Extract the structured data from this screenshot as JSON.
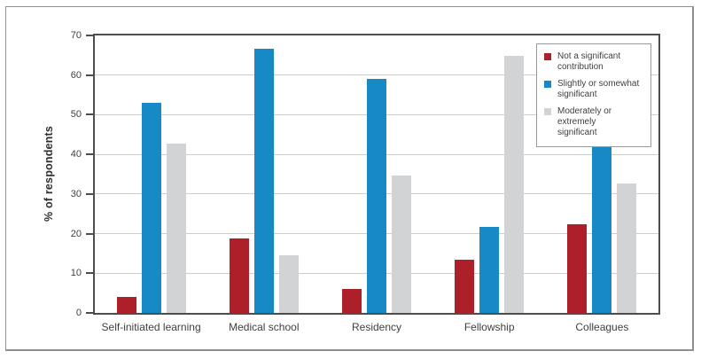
{
  "figure": {
    "background": "#ffffff",
    "border_color": "#8f8f8f"
  },
  "colors": {
    "axis": "#4d4d4d",
    "grid": "#cdcdcd",
    "text": "#3f3f3f",
    "legend_border": "#9a9a9a",
    "not_significant": "#ad1f29",
    "slightly_somewhat": "#1789c5",
    "moderately_extremely": "#d2d3d5"
  },
  "chart_data": {
    "type": "bar",
    "title": "",
    "xlabel": "",
    "ylabel": "% of respondents",
    "ylim": [
      0,
      70
    ],
    "yticks": [
      0,
      10,
      20,
      30,
      40,
      50,
      60,
      70
    ],
    "grid": "horizontal",
    "legend_position": "top-right-inside",
    "categories": [
      "Self-initiated learning",
      "Medical school",
      "Residency",
      "Fellowship",
      "Colleagues"
    ],
    "series": [
      {
        "name": "Not a significant contribution",
        "label_lines": [
          "Not a significant",
          "contribution"
        ],
        "color": "#ad1f29",
        "values": [
          4.1,
          18.8,
          6.1,
          13.5,
          22.3
        ]
      },
      {
        "name": "Slightly or somewhat significant",
        "label_lines": [
          "Slightly or somewhat",
          "significant"
        ],
        "color": "#1789c5",
        "values": [
          53.0,
          66.6,
          59.1,
          21.6,
          45.0
        ]
      },
      {
        "name": "Moderately or extremely significant",
        "label_lines": [
          "Moderately or extremely",
          "significant"
        ],
        "color": "#d2d3d5",
        "values": [
          42.8,
          14.6,
          34.6,
          64.8,
          32.6
        ]
      }
    ]
  }
}
